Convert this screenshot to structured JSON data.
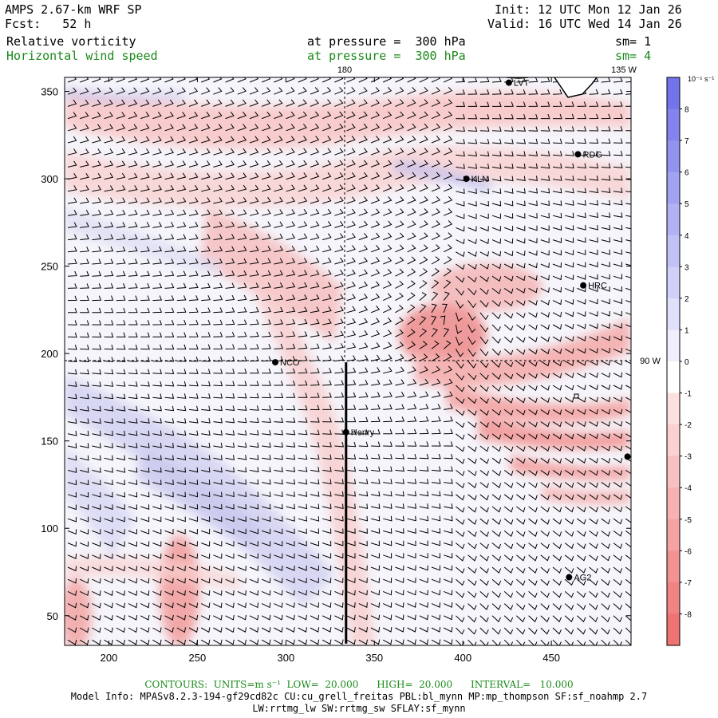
{
  "header": {
    "model": "AMPS 2.67-km WRF SP",
    "forecast": "Fcst:   52 h",
    "init": "Init: 12 UTC Mon 12 Jan 26",
    "valid": "Valid: 16 UTC Wed 14 Jan 26",
    "field1": {
      "name": "Relative vorticity",
      "level": "at pressure =  300 hPa",
      "smooth": "sm= 1"
    },
    "field2": {
      "name": "Horizontal wind speed",
      "level": "at pressure =  300 hPa",
      "smooth": "sm= 4"
    }
  },
  "map": {
    "lon_labels": [
      "180",
      "135 W",
      "90 W"
    ],
    "stations": [
      {
        "id": "LVT",
        "x": 426,
        "y": 355
      },
      {
        "id": "RDG",
        "x": 465,
        "y": 314
      },
      {
        "id": "KLN",
        "x": 402,
        "y": 300
      },
      {
        "id": "HRC",
        "x": 468,
        "y": 239
      },
      {
        "id": "NCO",
        "x": 294,
        "y": 195
      },
      {
        "id": "Henry",
        "x": 334,
        "y": 155
      },
      {
        "id": "AG2",
        "x": 460,
        "y": 72
      },
      {
        "id": "",
        "x": 493,
        "y": 141
      }
    ],
    "cross_section": {
      "x": 334,
      "y_from": 34,
      "y_to": 195
    },
    "crosshair": {
      "x": 334,
      "y": 195
    },
    "x_ticks": [
      200,
      250,
      300,
      350,
      400,
      450
    ],
    "y_ticks": [
      50,
      100,
      150,
      200,
      250,
      300,
      350
    ],
    "x_range": [
      175,
      495
    ],
    "y_range": [
      33,
      358
    ]
  },
  "colorbar": {
    "unit": "10⁻⁵ s⁻¹",
    "labels": [
      "8",
      "7",
      "6",
      "5",
      "4",
      "3",
      "2",
      "1",
      "0",
      "-1",
      "-2",
      "-3",
      "-4",
      "-5",
      "-6",
      "-7",
      "-8"
    ]
  },
  "footer": {
    "contours": "CONTOURS:  UNITS=m s⁻¹  LOW=  20.000      HIGH=  20.000      INTERVAL=   10.000",
    "model_info": "Model Info: MPASv8.2.3-194-gf29cd82c CU:cu_grell_freitas PBL:bl_mynn MP:mp_thompson SF:sf_noahmp 2.7",
    "physics": "LW:rrtmg_lw SW:rrtmg_sw SFLAY:sf_mynn"
  }
}
